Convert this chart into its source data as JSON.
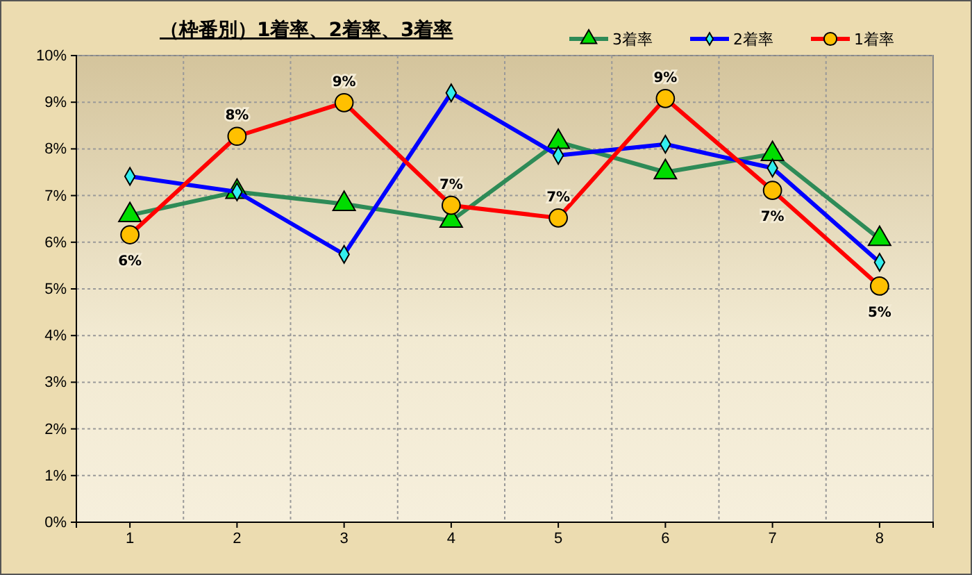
{
  "chart_data": {
    "type": "line",
    "title": "（枠番別）1着率、2着率、3着率",
    "categories": [
      "1",
      "2",
      "3",
      "4",
      "5",
      "6",
      "7",
      "8"
    ],
    "ylim": [
      0,
      10
    ],
    "yticks": [
      {
        "value": 0,
        "label": "0%"
      },
      {
        "value": 1,
        "label": "1%"
      },
      {
        "value": 2,
        "label": "2%"
      },
      {
        "value": 3,
        "label": "3%"
      },
      {
        "value": 4,
        "label": "4%"
      },
      {
        "value": 5,
        "label": "5%"
      },
      {
        "value": 6,
        "label": "6%"
      },
      {
        "value": 7,
        "label": "7%"
      },
      {
        "value": 8,
        "label": "8%"
      },
      {
        "value": 9,
        "label": "9%"
      },
      {
        "value": 10,
        "label": "10%"
      }
    ],
    "grid": true,
    "legend": "top right",
    "line_style": "solid",
    "series": [
      {
        "name": "3着率",
        "color": "#2e8b57",
        "marker": "triangle",
        "values": [
          6.58,
          7.08,
          6.82,
          6.46,
          8.15,
          7.5,
          7.89,
          6.07
        ]
      },
      {
        "name": "2着率",
        "color": "#0000ff",
        "marker": "diamond",
        "values": [
          7.41,
          7.08,
          5.74,
          9.2,
          7.86,
          8.1,
          7.59,
          5.57
        ]
      },
      {
        "name": "1着率",
        "color": "#ff0000",
        "marker": "circle",
        "values": [
          6.16,
          8.27,
          8.99,
          6.79,
          6.52,
          9.08,
          7.11,
          5.06
        ],
        "value_labels": [
          "6%",
          "8%",
          "9%",
          "7%",
          "7%",
          "9%",
          "7%",
          "5%"
        ]
      }
    ]
  }
}
